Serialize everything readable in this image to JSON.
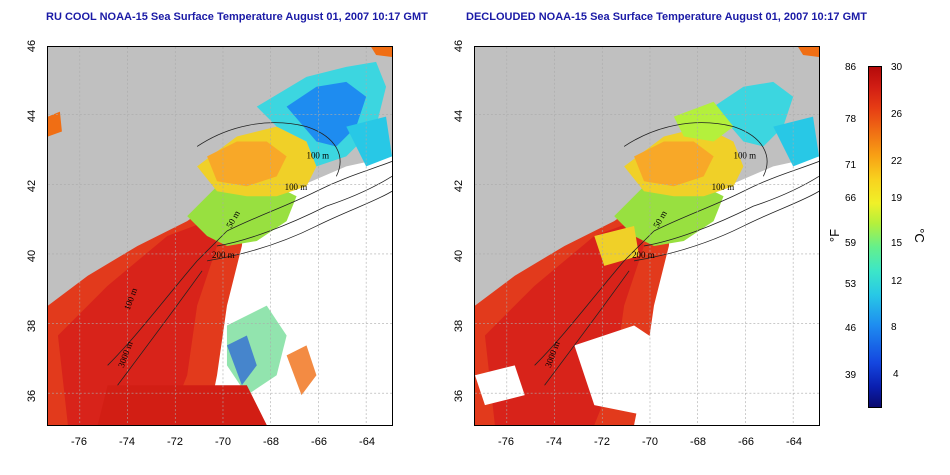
{
  "titles": {
    "left": "RU COOL NOAA-15 Sea Surface Temperature August 01, 2007 10:17 GMT",
    "right": "DECLOUDED NOAA-15 Sea Surface Temperature August 01, 2007 10:17 GMT"
  },
  "axes": {
    "lat_ticks": [
      "46",
      "44",
      "42",
      "40",
      "38",
      "36"
    ],
    "lon_ticks": [
      "-76",
      "-74",
      "-72",
      "-70",
      "-68",
      "-66",
      "-64"
    ]
  },
  "contour_labels": [
    "100 m",
    "100 m",
    "50 m",
    "200 m",
    "3000 m",
    "100 m"
  ],
  "colorbar": {
    "fahrenheit": [
      "86",
      "78",
      "71",
      "66",
      "59",
      "53",
      "46",
      "39"
    ],
    "celsius": [
      "30",
      "26",
      "22",
      "19",
      "15",
      "12",
      "8",
      "4"
    ],
    "unit_f": "°F",
    "unit_c": "°C"
  },
  "colors": {
    "land": "#c0c0c0",
    "title": "#1a1aa6"
  }
}
